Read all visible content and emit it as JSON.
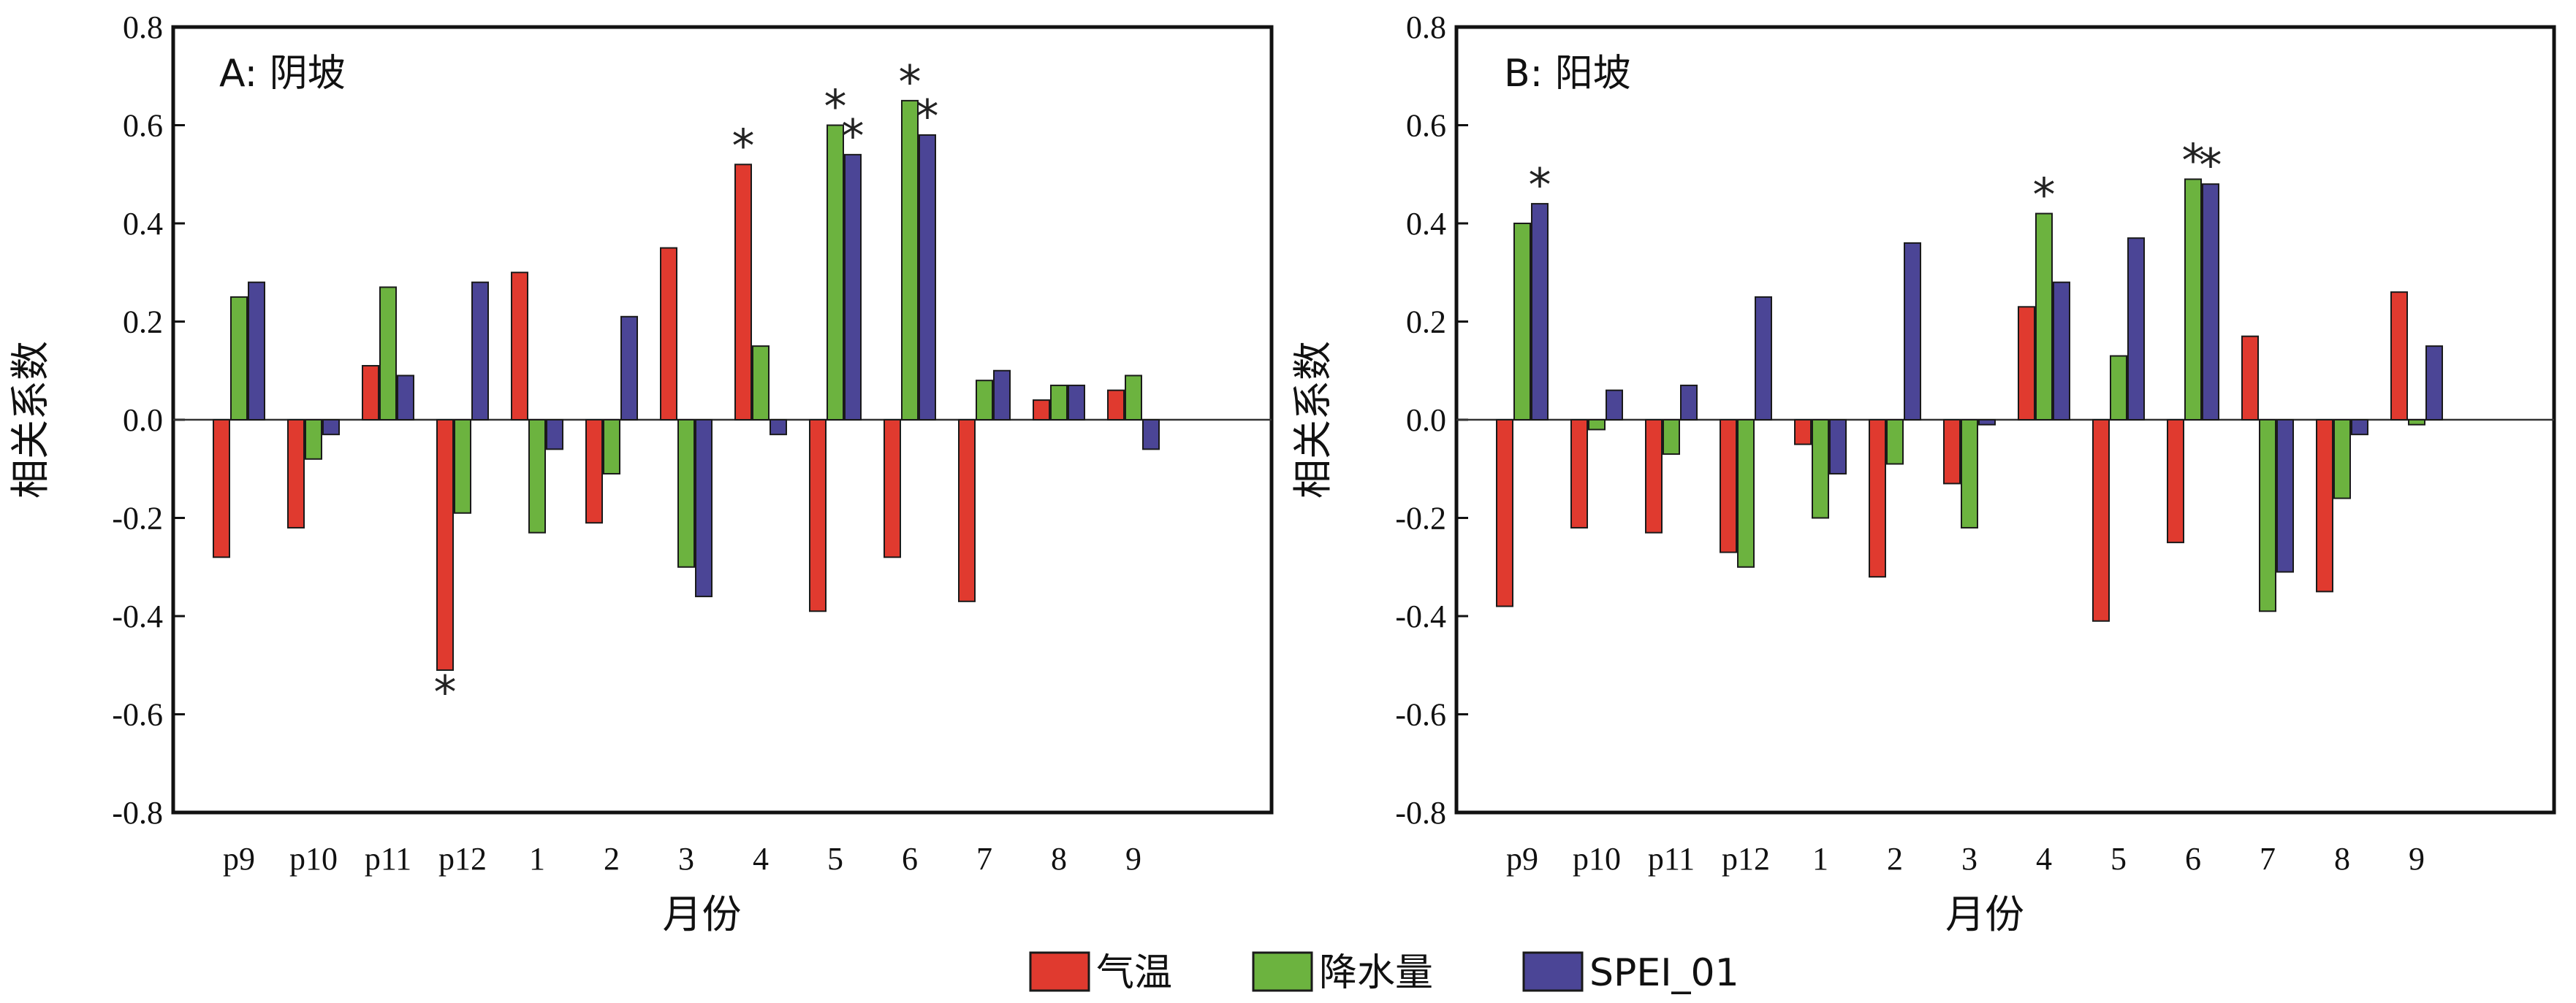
{
  "chart_data": [
    {
      "type": "bar",
      "title": "A: 阴坡",
      "xlabel": "月份",
      "ylabel": "相关系数",
      "ylim": [
        -0.8,
        0.8
      ],
      "yticks": [
        "0.8",
        "0.6",
        "0.4",
        "0.2",
        "0.0",
        "-0.2",
        "-0.4",
        "-0.6",
        "-0.8"
      ],
      "categories": [
        "p9",
        "p10",
        "p11",
        "p12",
        "1",
        "2",
        "3",
        "4",
        "5",
        "6",
        "7",
        "8",
        "9"
      ],
      "series": [
        {
          "name": "气温",
          "color": "#e03a2f",
          "values": [
            -0.28,
            -0.22,
            0.11,
            -0.51,
            0.3,
            -0.21,
            0.35,
            0.52,
            -0.39,
            -0.28,
            -0.37,
            0.04,
            0.06
          ],
          "significant": [
            false,
            false,
            false,
            true,
            false,
            false,
            false,
            true,
            false,
            false,
            false,
            false,
            false
          ]
        },
        {
          "name": "降水量",
          "color": "#6cb33f",
          "values": [
            0.25,
            -0.08,
            0.27,
            -0.19,
            -0.23,
            -0.11,
            -0.3,
            0.15,
            0.6,
            0.65,
            0.08,
            0.07,
            0.09
          ],
          "significant": [
            false,
            false,
            false,
            false,
            false,
            false,
            false,
            false,
            true,
            true,
            false,
            false,
            false
          ]
        },
        {
          "name": "SPEI_01",
          "color": "#4b4596",
          "values": [
            0.28,
            -0.03,
            0.09,
            0.28,
            -0.06,
            0.21,
            -0.36,
            -0.03,
            0.54,
            0.58,
            0.1,
            0.07,
            -0.06
          ],
          "significant": [
            false,
            false,
            false,
            false,
            false,
            false,
            false,
            false,
            true,
            true,
            false,
            false,
            false
          ]
        }
      ],
      "grid": false,
      "legend": "bottom"
    },
    {
      "type": "bar",
      "title": "B: 阳坡",
      "xlabel": "月份",
      "ylabel": "相关系数",
      "ylim": [
        -0.8,
        0.8
      ],
      "yticks": [
        "0.8",
        "0.6",
        "0.4",
        "0.2",
        "0.0",
        "-0.2",
        "-0.4",
        "-0.6",
        "-0.8"
      ],
      "categories": [
        "p9",
        "p10",
        "p11",
        "p12",
        "1",
        "2",
        "3",
        "4",
        "5",
        "6",
        "7",
        "8",
        "9"
      ],
      "series": [
        {
          "name": "气温",
          "color": "#e03a2f",
          "values": [
            -0.38,
            -0.22,
            -0.23,
            -0.27,
            -0.05,
            -0.32,
            -0.13,
            0.23,
            -0.41,
            -0.25,
            0.17,
            -0.35,
            0.26
          ],
          "significant": [
            false,
            false,
            false,
            false,
            false,
            false,
            false,
            false,
            false,
            false,
            false,
            false,
            false
          ]
        },
        {
          "name": "降水量",
          "color": "#6cb33f",
          "values": [
            0.4,
            -0.02,
            -0.07,
            -0.3,
            -0.2,
            -0.09,
            -0.22,
            0.42,
            0.13,
            0.49,
            -0.39,
            -0.16,
            -0.01
          ],
          "significant": [
            false,
            false,
            false,
            false,
            false,
            false,
            false,
            true,
            false,
            true,
            false,
            false,
            false
          ]
        },
        {
          "name": "SPEI_01",
          "color": "#4b4596",
          "values": [
            0.44,
            0.06,
            0.07,
            0.25,
            -0.11,
            0.36,
            -0.01,
            0.28,
            0.37,
            0.48,
            -0.31,
            -0.03,
            0.15
          ],
          "significant": [
            true,
            false,
            false,
            false,
            false,
            false,
            false,
            false,
            false,
            true,
            false,
            false,
            false
          ]
        }
      ],
      "grid": false,
      "legend": "bottom"
    }
  ],
  "legend": {
    "items": [
      {
        "label": "气温",
        "color": "#e03a2f"
      },
      {
        "label": "降水量",
        "color": "#6cb33f"
      },
      {
        "label": "SPEI_01",
        "color": "#4b4596"
      }
    ]
  },
  "significance_marker": "*"
}
